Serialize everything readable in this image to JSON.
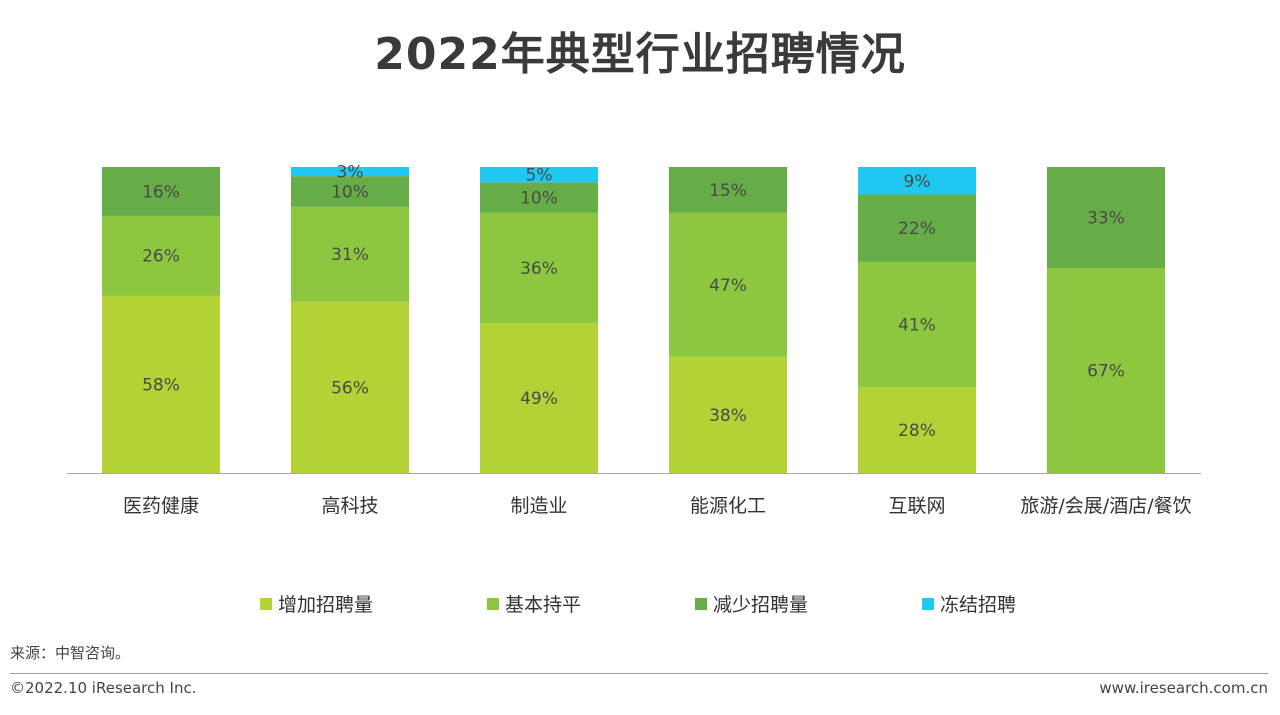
{
  "title": "2022年典型行业招聘情况",
  "chart_data": {
    "type": "bar",
    "stacked": true,
    "percent": true,
    "title": "2022年典型行业招聘情况",
    "categories": [
      "医药健康",
      "高科技",
      "制造业",
      "能源化工",
      "互联网",
      "旅游/会展/酒店/餐饮"
    ],
    "series": [
      {
        "name": "增加招聘量",
        "color": "#b2d235",
        "values": [
          58,
          56,
          49,
          38,
          28,
          0
        ]
      },
      {
        "name": "基本持平",
        "color": "#8dc63f",
        "values": [
          26,
          31,
          36,
          47,
          41,
          67
        ]
      },
      {
        "name": "减少招聘量",
        "color": "#66ad47",
        "values": [
          16,
          10,
          10,
          15,
          22,
          33
        ]
      },
      {
        "name": "冻结招聘",
        "color": "#1ec8f0",
        "values": [
          0,
          3,
          5,
          0,
          9,
          0
        ]
      }
    ],
    "ylim": [
      0,
      100
    ],
    "legend_position": "bottom",
    "grid": false
  },
  "source": "来源：中智咨询。",
  "footer": {
    "copyright": "©2022.10 iResearch Inc.",
    "website": "www.iresearch.com.cn"
  }
}
